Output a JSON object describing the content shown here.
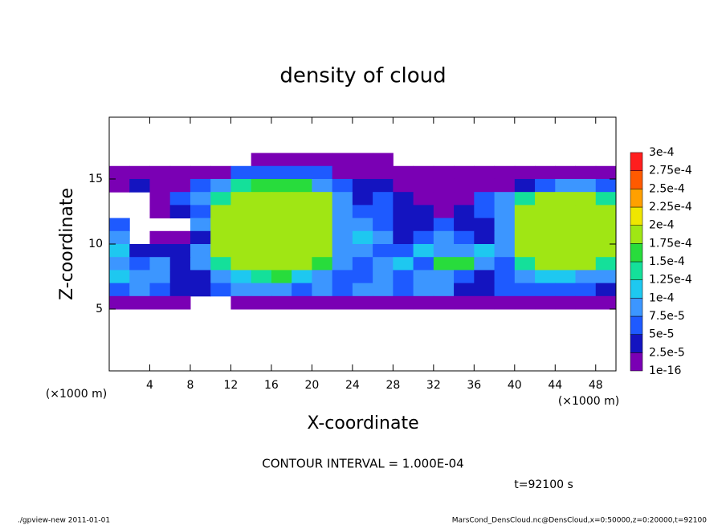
{
  "chart_data": {
    "type": "contour",
    "title": "density of cloud",
    "xlabel": "X-coordinate",
    "ylabel": "Z-coordinate",
    "x_unit": "(×1000 m)",
    "y_unit": "(×1000 m)",
    "contour_interval": "CONTOUR INTERVAL = 1.000E-04",
    "time": "t=92100 s",
    "footer_left": "./gpview-new  2011-01-01",
    "footer_right": "MarsCond_DensCloud.nc@DensCloud,x=0:50000,z=0:20000,t=92100",
    "xlim": [
      0,
      50
    ],
    "ylim": [
      0.25,
      19.75
    ],
    "xticks": [
      4,
      8,
      12,
      16,
      20,
      24,
      28,
      32,
      36,
      40,
      44,
      48
    ],
    "yticks": [
      5,
      10,
      15
    ],
    "x": [
      1,
      3,
      5,
      7,
      9,
      11,
      13,
      15,
      17,
      19,
      21,
      23,
      25,
      27,
      29,
      31,
      33,
      35,
      37,
      39,
      41,
      43,
      45,
      47,
      49
    ],
    "y": [
      16.5,
      15.5,
      14.5,
      13.5,
      12.5,
      11.5,
      10.5,
      9.5,
      8.5,
      7.5,
      6.5,
      5.5
    ],
    "levels": [
      {
        "value": 1e-16,
        "label": "1e-16"
      },
      {
        "value": 2.5e-05,
        "label": "2.5e-5"
      },
      {
        "value": 5e-05,
        "label": "5e-5"
      },
      {
        "value": 7.5e-05,
        "label": "7.5e-5"
      },
      {
        "value": 0.0001,
        "label": "1e-4"
      },
      {
        "value": 0.000125,
        "label": "1.25e-4"
      },
      {
        "value": 0.00015,
        "label": "1.5e-4"
      },
      {
        "value": 0.000175,
        "label": "1.75e-4"
      },
      {
        "value": 0.0002,
        "label": "2e-4"
      },
      {
        "value": 0.000225,
        "label": "2.25e-4"
      },
      {
        "value": 0.00025,
        "label": "2.5e-4"
      },
      {
        "value": 0.000275,
        "label": "2.75e-4"
      },
      {
        "value": 0.0003,
        "label": "3e-4"
      }
    ],
    "colors": [
      "#7a00b4",
      "#1414c0",
      "#1e5aff",
      "#3c96ff",
      "#1ec8f0",
      "#14e09a",
      "#28dc3c",
      "#a0e614",
      "#f0e600",
      "#ffa000",
      "#ff5a00",
      "#ff1e1e"
    ],
    "z": [
      [
        null,
        null,
        null,
        null,
        null,
        null,
        null,
        1e-16,
        1e-16,
        1e-16,
        1e-16,
        1e-16,
        1e-16,
        1e-16,
        null,
        null,
        null,
        null,
        null,
        null,
        null,
        null,
        null,
        null,
        null
      ],
      [
        1e-16,
        1e-16,
        1e-16,
        1e-16,
        1e-16,
        1e-16,
        5e-05,
        5e-05,
        5e-05,
        5e-05,
        5e-05,
        1e-16,
        1e-16,
        1e-16,
        1e-16,
        1e-16,
        1e-16,
        1e-16,
        1e-16,
        1e-16,
        1e-16,
        1e-16,
        1e-16,
        1e-16,
        1e-16
      ],
      [
        1e-16,
        2.5e-05,
        1e-16,
        1e-16,
        5e-05,
        7.5e-05,
        0.000125,
        0.00015,
        0.00015,
        0.00015,
        7.5e-05,
        5e-05,
        2.5e-05,
        2.5e-05,
        1e-16,
        1e-16,
        1e-16,
        1e-16,
        1e-16,
        1e-16,
        2.5e-05,
        5e-05,
        7.5e-05,
        7.5e-05,
        5e-05
      ],
      [
        null,
        null,
        1e-16,
        5e-05,
        7.5e-05,
        0.000125,
        0.000175,
        0.000175,
        0.000175,
        0.000175,
        0.000175,
        7.5e-05,
        2.5e-05,
        5e-05,
        2.5e-05,
        1e-16,
        1e-16,
        1e-16,
        5e-05,
        7.5e-05,
        0.000125,
        0.000175,
        0.000175,
        0.000175,
        0.000125
      ],
      [
        null,
        null,
        1e-16,
        2.5e-05,
        5e-05,
        0.000175,
        0.000175,
        0.000175,
        0.000175,
        0.000175,
        0.000175,
        7.5e-05,
        5e-05,
        5e-05,
        2.5e-05,
        2.5e-05,
        1e-16,
        2.5e-05,
        5e-05,
        7.5e-05,
        0.000175,
        0.000175,
        0.000175,
        0.000175,
        0.000175
      ],
      [
        5e-05,
        null,
        null,
        null,
        7.5e-05,
        0.000175,
        0.000175,
        0.000175,
        0.000175,
        0.000175,
        0.000175,
        7.5e-05,
        7.5e-05,
        5e-05,
        2.5e-05,
        2.5e-05,
        5e-05,
        2.5e-05,
        2.5e-05,
        7.5e-05,
        0.000175,
        0.000175,
        0.000175,
        0.000175,
        0.000175
      ],
      [
        7.5e-05,
        null,
        1e-16,
        1e-16,
        2.5e-05,
        0.000175,
        0.000175,
        0.000175,
        0.000175,
        0.000175,
        0.000175,
        7.5e-05,
        0.0001,
        7.5e-05,
        2.5e-05,
        5e-05,
        7.5e-05,
        5e-05,
        2.5e-05,
        7.5e-05,
        0.000175,
        0.000175,
        0.000175,
        0.000175,
        0.000175
      ],
      [
        0.0001,
        2.5e-05,
        2.5e-05,
        2.5e-05,
        7.5e-05,
        0.000175,
        0.000175,
        0.000175,
        0.000175,
        0.000175,
        0.000175,
        7.5e-05,
        7.5e-05,
        5e-05,
        5e-05,
        0.0001,
        7.5e-05,
        7.5e-05,
        0.0001,
        7.5e-05,
        0.000175,
        0.000175,
        0.000175,
        0.000175,
        0.000175
      ],
      [
        7.5e-05,
        5e-05,
        7.5e-05,
        2.5e-05,
        7.5e-05,
        0.000125,
        0.000175,
        0.000175,
        0.000175,
        0.000175,
        0.00015,
        7.5e-05,
        5e-05,
        7.5e-05,
        0.0001,
        5e-05,
        0.00015,
        0.00015,
        7.5e-05,
        5e-05,
        0.000125,
        0.000175,
        0.000175,
        0.000175,
        0.000125
      ],
      [
        0.0001,
        7.5e-05,
        7.5e-05,
        2.5e-05,
        2.5e-05,
        7.5e-05,
        0.0001,
        0.000125,
        0.00015,
        0.0001,
        7.5e-05,
        5e-05,
        5e-05,
        7.5e-05,
        5e-05,
        7.5e-05,
        7.5e-05,
        5e-05,
        2.5e-05,
        5e-05,
        7.5e-05,
        0.0001,
        0.0001,
        7.5e-05,
        7.5e-05
      ],
      [
        5e-05,
        7.5e-05,
        5e-05,
        2.5e-05,
        2.5e-05,
        5e-05,
        7.5e-05,
        7.5e-05,
        7.5e-05,
        5e-05,
        7.5e-05,
        5e-05,
        7.5e-05,
        7.5e-05,
        5e-05,
        7.5e-05,
        7.5e-05,
        2.5e-05,
        2.5e-05,
        5e-05,
        5e-05,
        5e-05,
        5e-05,
        5e-05,
        2.5e-05
      ],
      [
        1e-16,
        1e-16,
        1e-16,
        1e-16,
        null,
        null,
        1e-16,
        1e-16,
        1e-16,
        1e-16,
        1e-16,
        1e-16,
        1e-16,
        1e-16,
        1e-16,
        1e-16,
        1e-16,
        1e-16,
        1e-16,
        1e-16,
        1e-16,
        1e-16,
        1e-16,
        1e-16,
        1e-16
      ]
    ]
  }
}
